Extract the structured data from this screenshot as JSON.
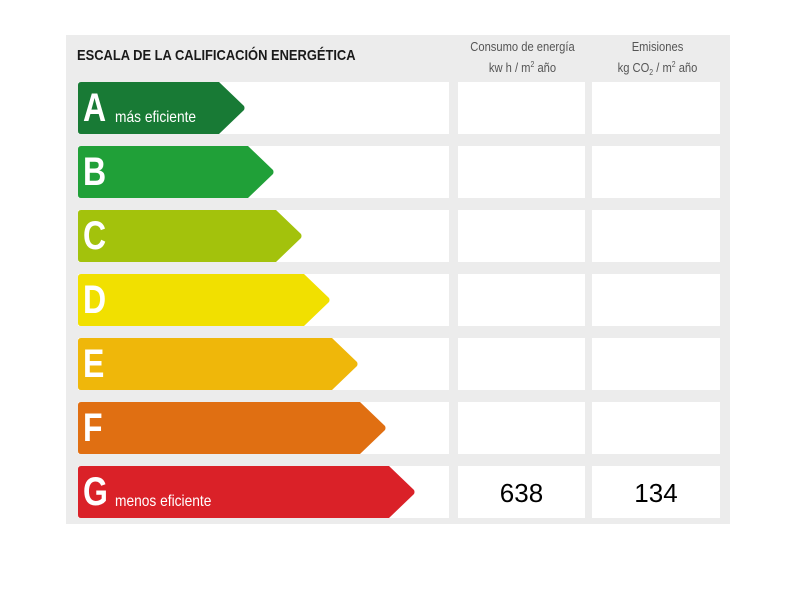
{
  "header": {
    "title": "ESCALA DE LA CALIFICACIÓN ENERGÉTICA",
    "col1_line1": "Consumo de energía",
    "col1_line2_pre": "kw h / m",
    "col1_line2_sup": "2",
    "col1_line2_post": " año",
    "col2_line1": "Emisiones",
    "col2_line2_pre": "kg CO",
    "col2_line2_sub": "2",
    "col2_line2_mid": " / m",
    "col2_line2_sup": "2",
    "col2_line2_post": " año"
  },
  "ratings": [
    {
      "letter": "A",
      "label": "más eficiente",
      "color": "#187a35",
      "consumo": "",
      "emisiones": ""
    },
    {
      "letter": "B",
      "label": "",
      "color": "#20a038",
      "consumo": "",
      "emisiones": ""
    },
    {
      "letter": "C",
      "label": "",
      "color": "#a3c20c",
      "consumo": "",
      "emisiones": ""
    },
    {
      "letter": "D",
      "label": "",
      "color": "#f1e000",
      "consumo": "",
      "emisiones": ""
    },
    {
      "letter": "E",
      "label": "",
      "color": "#efb70a",
      "consumo": "",
      "emisiones": ""
    },
    {
      "letter": "F",
      "label": "",
      "color": "#e06f12",
      "consumo": "",
      "emisiones": ""
    },
    {
      "letter": "G",
      "label": "menos eficiente",
      "color": "#da2128",
      "consumo": "638",
      "emisiones": "134"
    }
  ],
  "current": {
    "rating": "G",
    "consumo_kwh_m2_ano": "638",
    "emisiones_kgco2_m2_ano": "134"
  }
}
